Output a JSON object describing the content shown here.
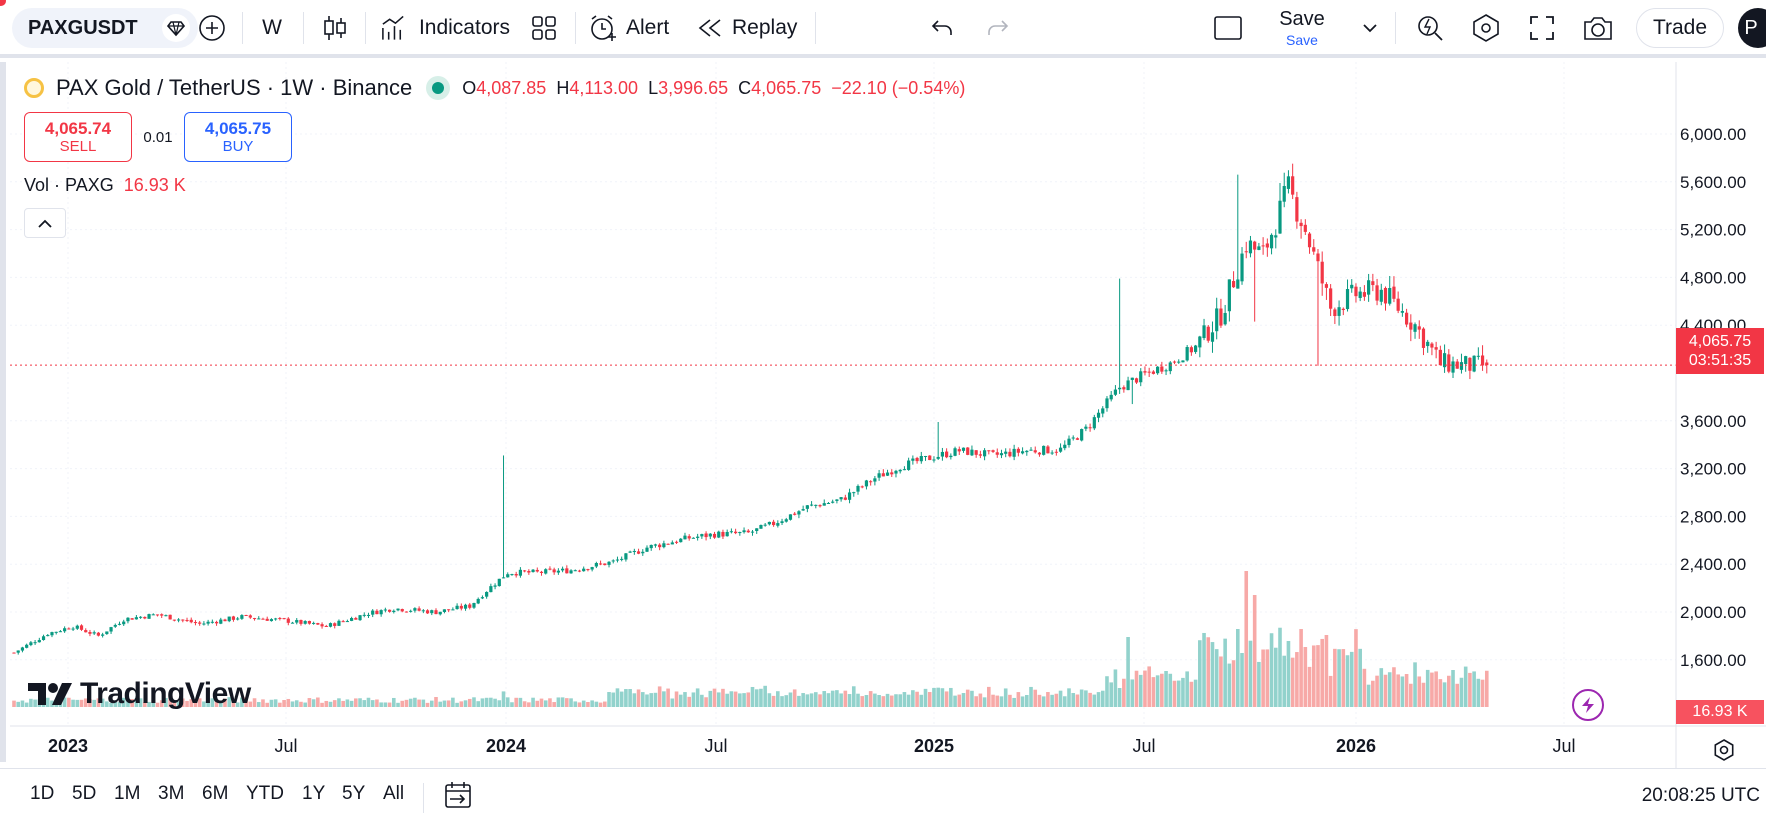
{
  "toolbar": {
    "symbol": "PAXGUSDT",
    "interval": "W",
    "indicators_label": "Indicators",
    "alert_label": "Alert",
    "replay_label": "Replay",
    "save_label": "Save",
    "save_sub_label": "Save",
    "trade_label": "Trade",
    "avatar_letter": "P"
  },
  "legend": {
    "title": "PAX Gold / TetherUS · 1W · Binance",
    "open_key": "O",
    "open": "4,087.85",
    "high_key": "H",
    "high": "4,113.00",
    "low_key": "L",
    "low": "3,996.65",
    "close_key": "C",
    "close": "4,065.75",
    "change": "−22.10 (−0.54%)"
  },
  "trade": {
    "sell_price": "4,065.74",
    "sell_label": "SELL",
    "spread": "0.01",
    "buy_price": "4,065.75",
    "buy_label": "BUY"
  },
  "volume_legend": {
    "label": "Vol · PAXG",
    "value": "16.93 K"
  },
  "price_scale": {
    "ticks": [
      "6,000.00",
      "5,600.00",
      "5,200.00",
      "4,800.00",
      "4,400.00",
      "3,600.00",
      "3,200.00",
      "2,800.00",
      "2,400.00",
      "2,000.00",
      "1,600.00"
    ],
    "last_price": "4,065.75",
    "countdown": "03:51:35",
    "volume_tag": "16.93 K"
  },
  "time_scale": {
    "labels": [
      "2023",
      "Jul",
      "2024",
      "Jul",
      "2025",
      "Jul",
      "2026",
      "Jul"
    ]
  },
  "watermark": "TradingView",
  "bottom": {
    "ranges": [
      "1D",
      "5D",
      "1M",
      "3M",
      "6M",
      "YTD",
      "1Y",
      "5Y",
      "All"
    ],
    "clock": "20:08:25 UTC"
  },
  "colors": {
    "up": "#089981",
    "down": "#f23645",
    "up_vol": "#92d2cc",
    "down_vol": "#f7a9a7",
    "accent": "#2962ff"
  },
  "chart_data": {
    "type": "candlestick",
    "title": "PAX Gold / TetherUS · 1W · Binance",
    "interval": "1W",
    "ylim": [
      1400,
      6100
    ],
    "y_ticks": [
      1600,
      2000,
      2400,
      2800,
      3200,
      3600,
      4400,
      4800,
      5200,
      5600,
      6000
    ],
    "x_ticks": [
      "2023",
      "Jul",
      "2024",
      "Jul",
      "2025",
      "Jul",
      "2026",
      "Jul"
    ],
    "last_price": 4065.75,
    "volume_last": "16.93 K",
    "anchors": [
      [
        0,
        1660
      ],
      [
        8,
        1820
      ],
      [
        14,
        1880
      ],
      [
        20,
        1800
      ],
      [
        26,
        1940
      ],
      [
        34,
        1980
      ],
      [
        44,
        1900
      ],
      [
        54,
        1960
      ],
      [
        64,
        1930
      ],
      [
        74,
        1880
      ],
      [
        84,
        1990
      ],
      [
        90,
        2030
      ],
      [
        100,
        2000
      ],
      [
        108,
        2050
      ],
      [
        112,
        2180
      ],
      [
        117,
        2330
      ],
      [
        124,
        2330
      ],
      [
        132,
        2350
      ],
      [
        142,
        2420
      ],
      [
        150,
        2540
      ],
      [
        160,
        2620
      ],
      [
        166,
        2650
      ],
      [
        174,
        2660
      ],
      [
        180,
        2740
      ],
      [
        188,
        2880
      ],
      [
        196,
        2940
      ],
      [
        204,
        3120
      ],
      [
        210,
        3220
      ],
      [
        218,
        3300
      ],
      [
        224,
        3350
      ],
      [
        232,
        3310
      ],
      [
        240,
        3350
      ],
      [
        248,
        3360
      ],
      [
        254,
        3530
      ],
      [
        262,
        3880
      ],
      [
        268,
        3990
      ],
      [
        274,
        4080
      ],
      [
        280,
        4220
      ],
      [
        286,
        4490
      ],
      [
        292,
        5080
      ],
      [
        296,
        4990
      ],
      [
        302,
        5540
      ],
      [
        306,
        5200
      ],
      [
        312,
        4540
      ],
      [
        318,
        4660
      ],
      [
        324,
        4690
      ],
      [
        332,
        4400
      ],
      [
        338,
        4080
      ],
      [
        346,
        4060
      ],
      [
        349,
        4066
      ]
    ],
    "spikes": [
      [
        116,
        "high",
        3310
      ],
      [
        262,
        "high",
        4790
      ],
      [
        290,
        "high",
        5660
      ],
      [
        300,
        "high",
        5590
      ],
      [
        294,
        "low",
        4430
      ],
      [
        309,
        "low",
        4060
      ],
      [
        219,
        "high",
        3590
      ],
      [
        265,
        "low",
        3740
      ]
    ]
  }
}
